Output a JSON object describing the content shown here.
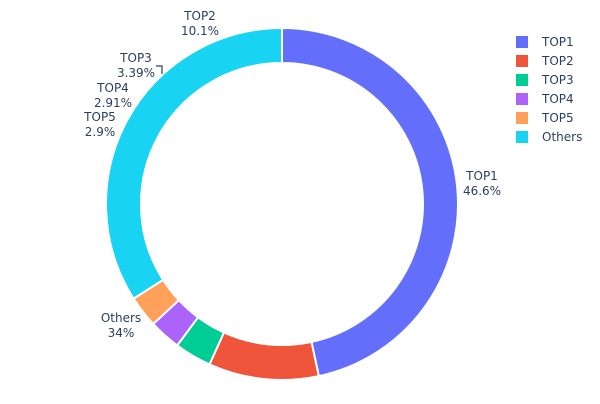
{
  "chart_data": {
    "type": "pie",
    "hole": true,
    "labels": [
      "TOP1",
      "TOP2",
      "TOP3",
      "TOP4",
      "TOP5",
      "Others"
    ],
    "values": [
      46.6,
      10.1,
      3.39,
      2.91,
      2.9,
      34
    ],
    "value_labels": [
      "46.6%",
      "10.1%",
      "3.39%",
      "2.91%",
      "2.9%",
      "34%"
    ],
    "colors": [
      "#636efa",
      "#ef553b",
      "#00cc96",
      "#ab63fa",
      "#ffa15a",
      "#19d3f3"
    ],
    "legend": {
      "placement": "top-right",
      "entries": [
        "TOP1",
        "TOP2",
        "TOP3",
        "TOP4",
        "TOP5",
        "Others"
      ]
    },
    "direction": "clockwise",
    "start": "top"
  }
}
